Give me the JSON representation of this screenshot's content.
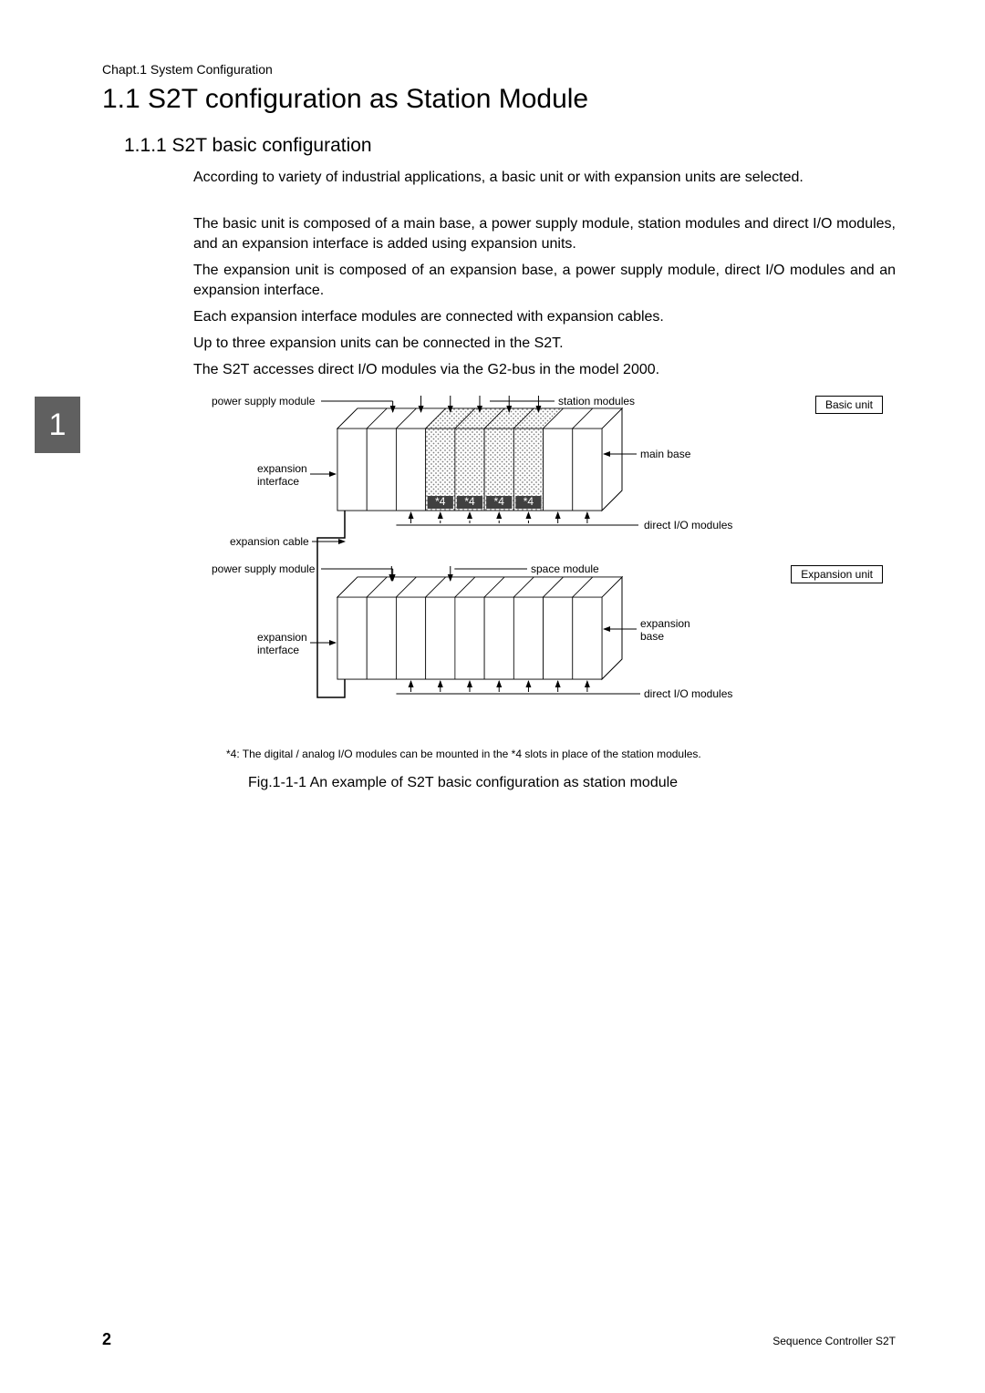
{
  "chapter_header": "Chapt.1  System Configuration",
  "h1": "1.1   S2T configuration as Station Module",
  "h2": "1.1.1     S2T basic configuration",
  "paragraphs": {
    "p1": "According to variety of industrial applications, a basic unit or with expansion units are selected.",
    "p2": "The basic unit is composed of a main base, a power supply module, station modules and direct I/O modules, and an expansion interface is added using expansion units.",
    "p3": "The expansion unit is composed of an expansion base, a power supply module, direct I/O modules and an expansion interface.",
    "p4": "Each expansion interface modules are connected with expansion cables.",
    "p5": "Up to three expansion units can be connected in the S2T.",
    "p6": "The S2T accesses direct I/O modules via the G2-bus in the model 2000."
  },
  "diagram": {
    "labels": {
      "power_supply_module": "power supply module",
      "station_modules": "station modules",
      "basic_unit": "Basic unit",
      "main_base": "main base",
      "expansion_interface": "expansion\ninterface",
      "direct_io_modules": "direct I/O modules",
      "expansion_cable": "expansion cable",
      "space_module": "space module",
      "expansion_unit": "Expansion unit",
      "expansion_base": "expansion\nbase",
      "star4": "*4"
    },
    "colors": {
      "hatch": "#a0a0a0",
      "line": "#000000",
      "bg": "#ffffff",
      "tab": "#606060"
    },
    "slot_count": 9,
    "station_slots": [
      3,
      4,
      5,
      6
    ],
    "unit_width": 290,
    "unit_height": 90,
    "skew": 22
  },
  "footnote": "*4:   The digital / analog I/O modules can be mounted in the *4 slots in place of the station modules.",
  "figure_caption": "Fig.1-1-1  An example of S2T basic configuration as station module",
  "page_number": "2",
  "footer_right": "Sequence Controller S2T"
}
